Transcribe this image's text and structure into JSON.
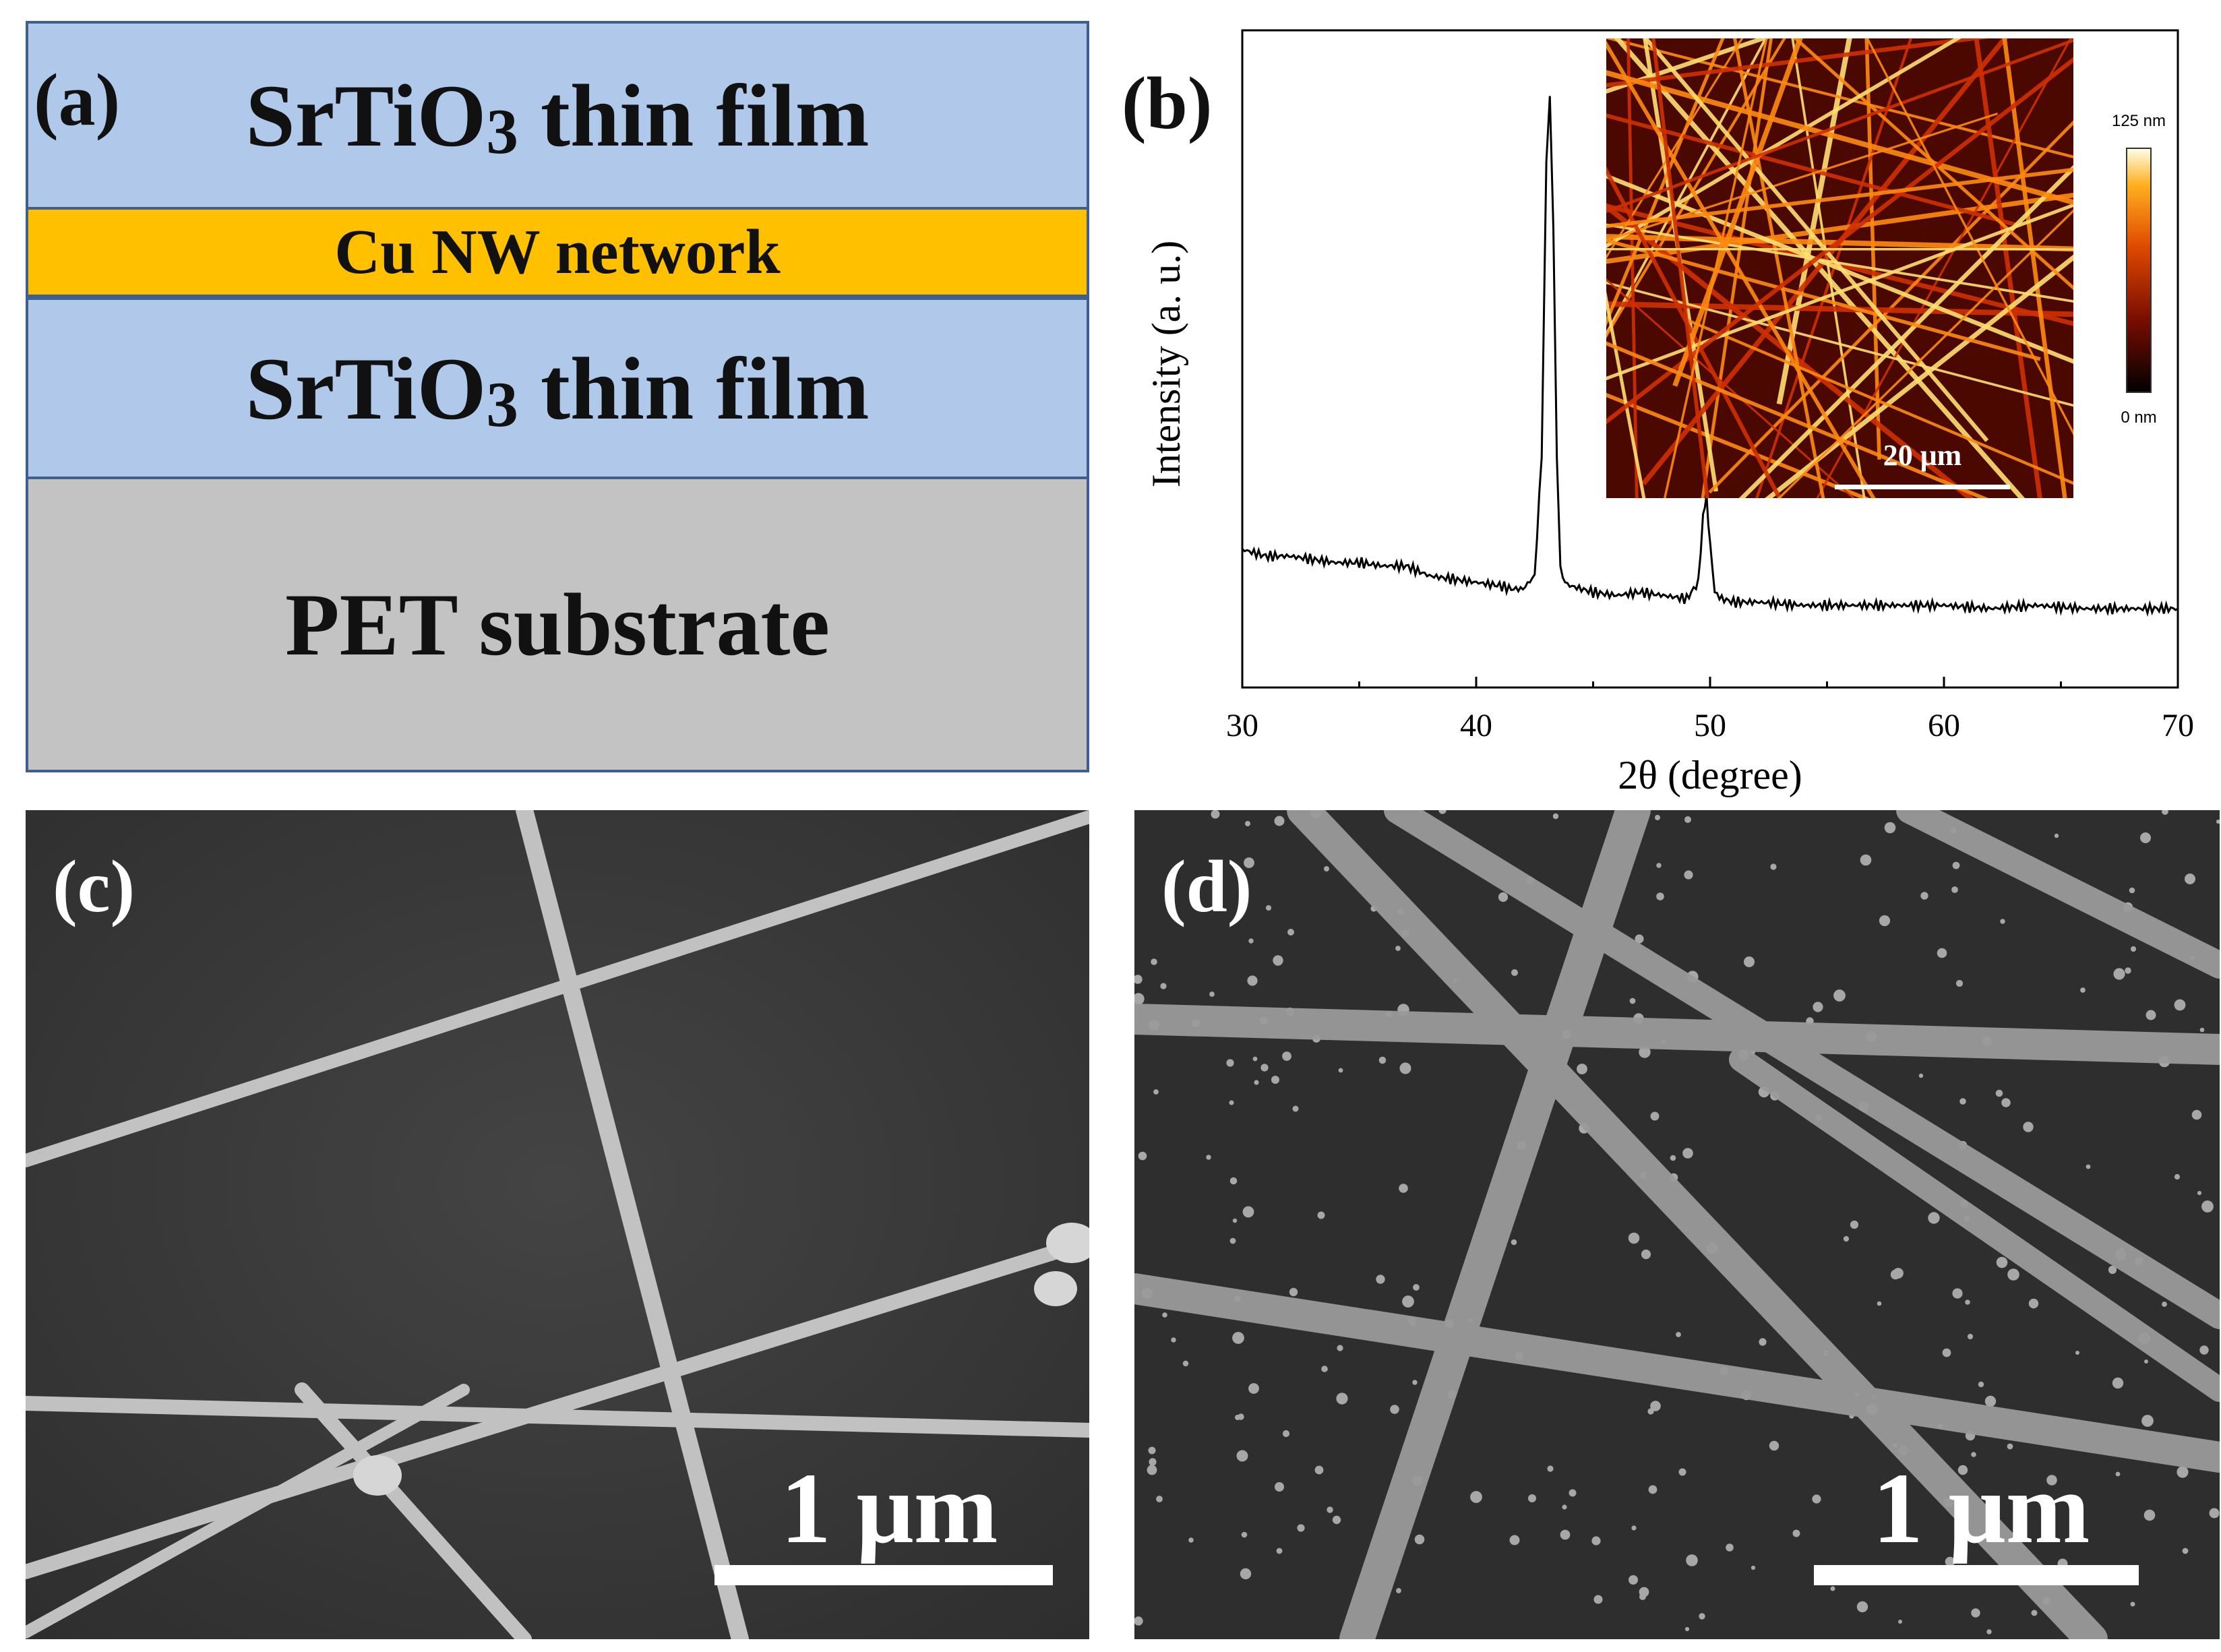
{
  "panel_a": {
    "label": "(a)",
    "layers": [
      {
        "name": "SrTiO",
        "sub": "3",
        "rest": " thin film",
        "color": "#b0c9ea"
      },
      {
        "text": "Cu NW network",
        "color": "#ffc000"
      },
      {
        "name": "SrTiO",
        "sub": "3",
        "rest": " thin film",
        "color": "#b0c9ea"
      },
      {
        "text": "PET substrate",
        "color": "#c3c3c3"
      }
    ],
    "border_color": "#3f5f8e"
  },
  "panel_b": {
    "label": "(b)",
    "inset": {
      "colorbar_max": "125 nm",
      "colorbar_min": "0 nm",
      "scale_label": "20 μm"
    }
  },
  "chart_data": {
    "type": "line",
    "xlabel": "2θ (degree)",
    "ylabel": "Intensity (a. u.)",
    "xlim": [
      30,
      70
    ],
    "ylim": [
      0,
      100
    ],
    "xticks": [
      30,
      40,
      50,
      60,
      70
    ],
    "grid": false,
    "series": [
      {
        "x": [
          30,
          31,
          32,
          33,
          34,
          35,
          36,
          37,
          38,
          39,
          40,
          41,
          41.5,
          42,
          42.5,
          42.8,
          43.0,
          43.15,
          43.3,
          43.45,
          43.6,
          43.8,
          44.0,
          44.5,
          45,
          46,
          47,
          48,
          49,
          49.5,
          49.7,
          49.85,
          50.0,
          50.2,
          50.5,
          51,
          52,
          54,
          56,
          58,
          60,
          62,
          64,
          66,
          68,
          70
        ],
        "y": [
          21,
          20,
          20,
          19.5,
          19,
          19,
          18.5,
          18.5,
          17,
          16.5,
          16,
          15.5,
          15,
          15,
          17,
          35,
          80,
          90,
          70,
          35,
          18,
          16,
          15.5,
          15,
          14.5,
          14,
          14.5,
          14,
          13.5,
          16,
          26,
          29,
          22,
          14.5,
          13.5,
          13,
          13,
          12.5,
          12.5,
          12.5,
          12.5,
          12,
          12.5,
          12,
          12,
          12
        ]
      }
    ]
  },
  "panel_c": {
    "label": "(c)",
    "scale_label": "1 μm"
  },
  "panel_d": {
    "label": "(d)",
    "scale_label": "1 μm"
  }
}
